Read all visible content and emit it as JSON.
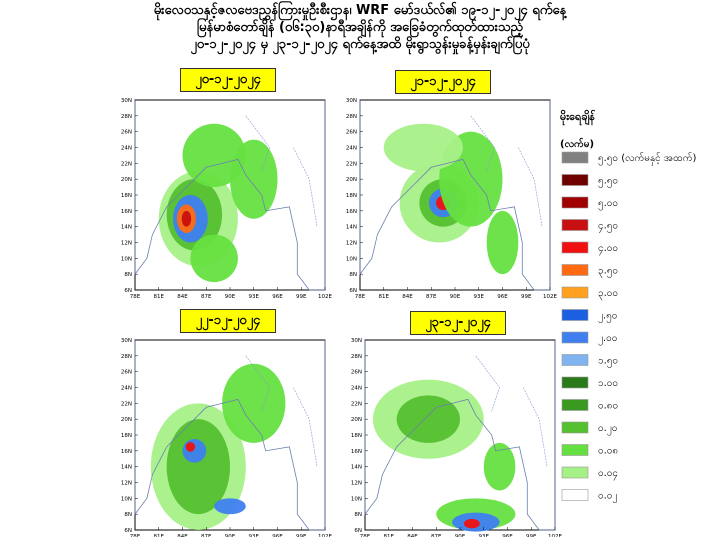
{
  "header": {
    "title_lines": [
      "မိုးလေဝသနှင့်ဇလဗေဒညွှန်ကြားမှုဦးစီးဌာန၊ WRF မော်ဒယ်လ်၏ ၁၉-၁၂-၂၀၂၄ ရက်နေ့",
      "မြန်မာစံတော်ချိန် (၀၆:၃၀)နာရီအချိန်ကို အခြေခံတွက်ထုတ်ထားသည့်",
      "၂၀-၁၂-၂၀၂၄ မှ ၂၃-၁၂-၂၀၂၄ ရက်နေ့အထိ မိုးရွာသွန်းမှုခန့်မှန်းချက်ပြပုံ"
    ]
  },
  "panels": [
    {
      "date": "၂၀-၁၂-၂၀၂၄"
    },
    {
      "date": "၂၁-၁၂-၂၀၂၄"
    },
    {
      "date": "၂၂-၁၂-၂၀၂၄"
    },
    {
      "date": "၂၃-၁၂-၂၀၂၄"
    }
  ],
  "map_axes": {
    "lat_labels": [
      "30N",
      "28N",
      "26N",
      "24N",
      "22N",
      "20N",
      "18N",
      "16N",
      "14N",
      "12N",
      "10N",
      "8N",
      "6N"
    ],
    "lon_labels": [
      "78E",
      "81E",
      "84E",
      "87E",
      "90E",
      "93E",
      "96E",
      "99E",
      "102E"
    ]
  },
  "legend": {
    "title": "မိုးရေချိန်",
    "unit": "(လက်မ)",
    "items": [
      {
        "label": "၅.၅၀ (လက်မနှင့် အထက်)",
        "color": "#808080"
      },
      {
        "label": "၅.၅၀",
        "color": "#6e0000"
      },
      {
        "label": "၅.၀၀",
        "color": "#a00000"
      },
      {
        "label": "၄.၅၀",
        "color": "#c81010"
      },
      {
        "label": "၄.၀၀",
        "color": "#f01010"
      },
      {
        "label": "၃.၅၀",
        "color": "#ff6a13"
      },
      {
        "label": "၃.၀၀",
        "color": "#ffa020"
      },
      {
        "label": "၂.၅၀",
        "color": "#1c5fe0"
      },
      {
        "label": "၂.၀၀",
        "color": "#3f7ff0"
      },
      {
        "label": "၁.၅၀",
        "color": "#80b4f0"
      },
      {
        "label": "၁.၀၀",
        "color": "#2b7a1a"
      },
      {
        "label": "၀.၈၀",
        "color": "#3a9a20"
      },
      {
        "label": "၀.၂၀",
        "color": "#55c030"
      },
      {
        "label": "၀.၀၈",
        "color": "#66e040"
      },
      {
        "label": "၀.၀၄",
        "color": "#a6f088"
      },
      {
        "label": "၀.၀၂",
        "color": "#ffffff"
      }
    ]
  }
}
